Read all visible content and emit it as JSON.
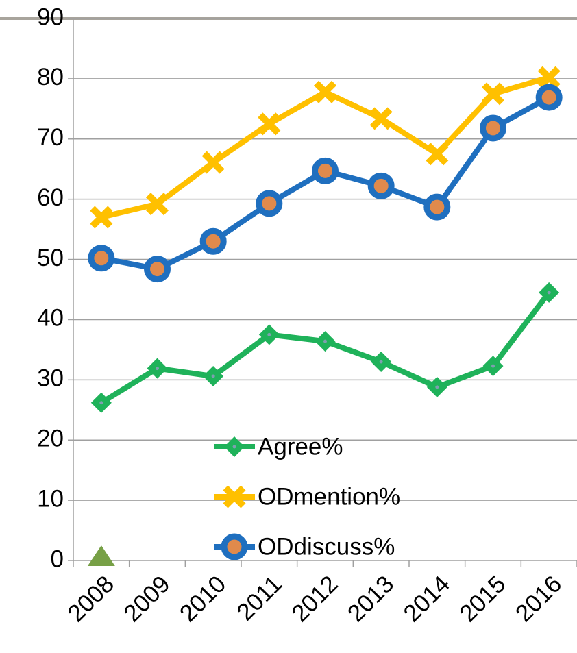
{
  "chart_data": {
    "type": "line",
    "categories": [
      "2008",
      "2009",
      "2010",
      "2011",
      "2012",
      "2013",
      "2014",
      "2015",
      "2016"
    ],
    "series": [
      {
        "name": "Agree%",
        "color": "#1fb25a",
        "marker": "diamond",
        "values": [
          26.2,
          31.9,
          30.6,
          37.5,
          36.4,
          33,
          28.8,
          32.3,
          44.5
        ]
      },
      {
        "name": "ODmention%",
        "color": "#ffc000",
        "marker": "x",
        "values": [
          57,
          59.2,
          66.1,
          72.5,
          77.8,
          73.4,
          67.5,
          77.5,
          80.2
        ]
      },
      {
        "name": "ODdiscuss%",
        "color": "#1f6fbf",
        "marker": "circle",
        "values": [
          50.2,
          48.4,
          53,
          59.3,
          64.7,
          62.2,
          58.7,
          71.8,
          76.9
        ]
      },
      {
        "color": "#77a046",
        "marker": "triangle",
        "values": [
          0,
          null,
          null,
          null,
          null,
          null,
          null,
          null,
          null
        ]
      }
    ],
    "ylim": [
      0,
      90
    ],
    "yticks": [
      0,
      10,
      20,
      30,
      40,
      50,
      60,
      70,
      80,
      90
    ],
    "grid": true,
    "legend": "bottom"
  }
}
